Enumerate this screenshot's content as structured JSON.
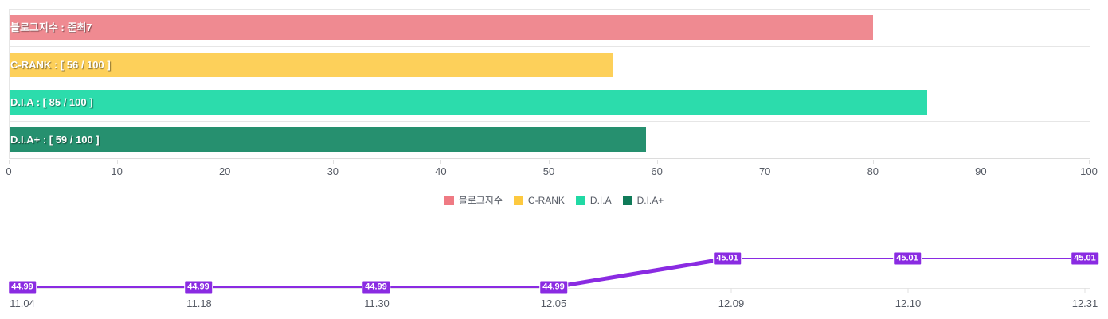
{
  "chart_data": [
    {
      "type": "bar",
      "orientation": "horizontal",
      "categories": [
        "블로그지수",
        "C-RANK",
        "D.I.A",
        "D.I.A+"
      ],
      "values": [
        80,
        56,
        85,
        59
      ],
      "bar_labels": [
        "블로그지수 : 준최7",
        "C-RANK : [ 56 / 100 ]",
        "D.I.A : [ 85 / 100 ]",
        "D.I.A+ : [ 59 / 100 ]"
      ],
      "colors": [
        "#ef8a91",
        "#fdd05a",
        "#2cdcac",
        "#26906f"
      ],
      "xlim": [
        0,
        100
      ],
      "xticks": [
        "0",
        "10",
        "20",
        "30",
        "40",
        "50",
        "60",
        "70",
        "80",
        "90",
        "100"
      ],
      "legend": [
        {
          "label": "블로그지수",
          "color": "#ef7a83"
        },
        {
          "label": "C-RANK",
          "color": "#fdc93f"
        },
        {
          "label": "D.I.A",
          "color": "#20d9a4"
        },
        {
          "label": "D.I.A+",
          "color": "#107b59"
        }
      ],
      "legend_position": "bottom",
      "grid": true
    },
    {
      "type": "line",
      "x": [
        "11.04",
        "11.18",
        "11.30",
        "12.05",
        "12.09",
        "12.10",
        "12.31"
      ],
      "values": [
        44.99,
        44.99,
        44.99,
        44.99,
        45.01,
        45.01,
        45.01
      ],
      "point_labels": [
        "44.99",
        "44.99",
        "44.99",
        "44.99",
        "45.01",
        "45.01",
        "45.01"
      ],
      "color": "#8a2be2"
    }
  ]
}
